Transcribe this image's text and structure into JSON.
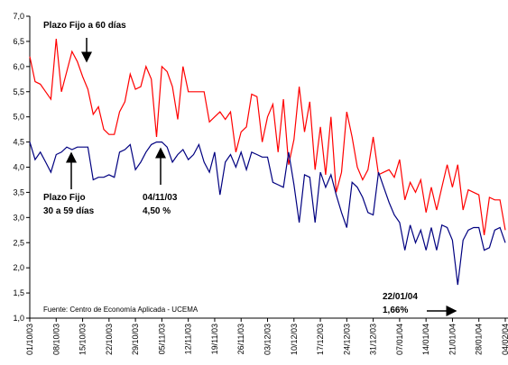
{
  "chart_data": {
    "type": "line",
    "categories": [
      "01/10/03",
      null,
      null,
      null,
      null,
      "08/10/03",
      null,
      null,
      null,
      null,
      "15/10/03",
      null,
      null,
      null,
      null,
      "22/10/03",
      null,
      null,
      null,
      null,
      "29/10/03",
      null,
      null,
      null,
      null,
      "05/11/03",
      null,
      null,
      null,
      null,
      "12/11/03",
      null,
      null,
      null,
      null,
      "19/11/03",
      null,
      null,
      null,
      null,
      "26/11/03",
      null,
      null,
      null,
      null,
      "03/12/03",
      null,
      null,
      null,
      null,
      "10/12/03",
      null,
      null,
      null,
      null,
      "17/12/03",
      null,
      null,
      null,
      null,
      "24/12/03",
      null,
      null,
      null,
      null,
      "31/12/03",
      null,
      null,
      null,
      null,
      "07/01/04",
      null,
      null,
      null,
      null,
      "14/01/04",
      null,
      null,
      null,
      null,
      "21/01/04",
      null,
      null,
      null,
      null,
      "28/01/04",
      null,
      null,
      null,
      null,
      "04/02/04"
    ],
    "series": [
      {
        "color": "#ff0000",
        "values": [
          6.2,
          5.7,
          5.65,
          5.5,
          5.35,
          6.55,
          5.5,
          5.9,
          6.3,
          6.1,
          5.8,
          5.55,
          5.05,
          5.2,
          4.75,
          4.65,
          4.65,
          5.1,
          5.3,
          5.85,
          5.55,
          5.6,
          6.0,
          5.75,
          4.6,
          6.0,
          5.9,
          5.6,
          4.95,
          6.0,
          5.5,
          5.5,
          5.5,
          5.5,
          4.9,
          5.0,
          5.1,
          4.95,
          5.1,
          4.3,
          4.7,
          4.8,
          5.45,
          5.4,
          4.5,
          5.0,
          5.25,
          4.3,
          5.35,
          4.05,
          4.55,
          5.6,
          4.7,
          5.3,
          3.95,
          4.8,
          3.85,
          5.0,
          3.5,
          3.9,
          5.1,
          4.6,
          4.0,
          3.75,
          3.95,
          4.6,
          3.85,
          3.9,
          3.95,
          3.8,
          4.15,
          3.35,
          3.7,
          3.5,
          3.75,
          3.1,
          3.6,
          3.15,
          3.6,
          4.05,
          3.6,
          4.05,
          3.15,
          3.55,
          3.5,
          3.45,
          2.65,
          3.4,
          3.35,
          3.35,
          2.75
        ]
      },
      {
        "color": "#000080",
        "values": [
          4.5,
          4.15,
          4.3,
          4.1,
          3.9,
          4.25,
          4.3,
          4.4,
          4.35,
          4.4,
          4.4,
          4.4,
          3.75,
          3.8,
          3.8,
          3.85,
          3.8,
          4.3,
          4.35,
          4.45,
          3.95,
          4.1,
          4.3,
          4.45,
          4.5,
          4.5,
          4.4,
          4.1,
          4.25,
          4.35,
          4.15,
          4.25,
          4.45,
          4.1,
          3.9,
          4.3,
          3.45,
          4.1,
          4.25,
          4.0,
          4.3,
          3.95,
          4.3,
          4.25,
          4.2,
          4.2,
          3.7,
          3.65,
          3.6,
          4.3,
          3.65,
          2.9,
          3.85,
          3.8,
          2.9,
          3.9,
          3.6,
          3.85,
          3.45,
          3.1,
          2.8,
          3.7,
          3.6,
          3.4,
          3.1,
          3.05,
          3.9,
          3.6,
          3.3,
          3.05,
          2.9,
          2.35,
          2.85,
          2.5,
          2.75,
          2.35,
          2.8,
          2.35,
          2.85,
          2.8,
          2.55,
          1.66,
          2.55,
          2.75,
          2.8,
          2.8,
          2.35,
          2.4,
          2.75,
          2.8,
          2.5
        ]
      }
    ],
    "ylim": [
      1.0,
      7.0
    ],
    "yticks": [
      {
        "value": 1.0,
        "label": "1,0"
      },
      {
        "value": 1.5,
        "label": "1,5"
      },
      {
        "value": 2.0,
        "label": "2,0"
      },
      {
        "value": 2.5,
        "label": "2,5"
      },
      {
        "value": 3.0,
        "label": "3,0"
      },
      {
        "value": 3.5,
        "label": "3,5"
      },
      {
        "value": 4.0,
        "label": "4,0"
      },
      {
        "value": 4.5,
        "label": "4,5"
      },
      {
        "value": 5.0,
        "label": "5,0"
      },
      {
        "value": 5.5,
        "label": "5,5"
      },
      {
        "value": 6.0,
        "label": "6,0"
      },
      {
        "value": 6.5,
        "label": "6,5"
      },
      {
        "value": 7.0,
        "label": "7,0"
      }
    ],
    "grid": false,
    "annotations": [
      {
        "lines": [
          "Plazo Fijo a 60 días"
        ]
      },
      {
        "lines": [
          "Plazo Fijo",
          "30 a 59 días"
        ]
      },
      {
        "lines": [
          "04/11/03",
          "4,50 %"
        ]
      },
      {
        "lines": [
          "22/01/04",
          "1,66%"
        ]
      },
      {
        "lines": [
          "Fuente:  Centro de Economía Aplicada - UCEMA"
        ]
      }
    ]
  }
}
